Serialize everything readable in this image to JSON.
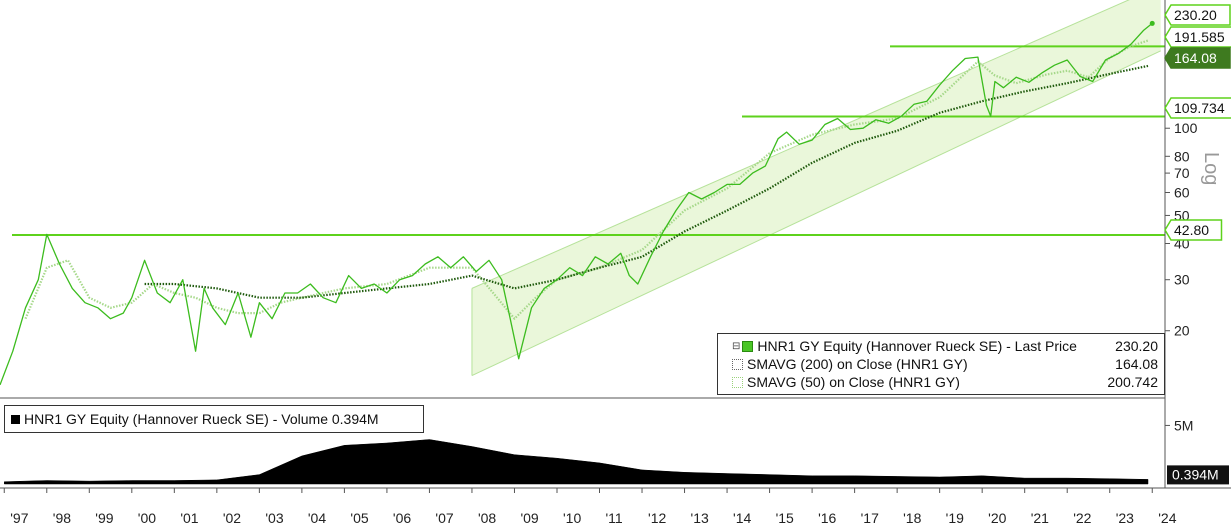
{
  "chart_data": [
    {
      "type": "line",
      "scale": "log",
      "yaxis_label": "Log",
      "ylim": [
        12,
        260
      ],
      "xlim": [
        1996.9,
        2024.3
      ],
      "y_ticks": [
        20,
        30,
        40,
        50,
        60,
        70,
        80,
        100
      ],
      "x_ticks": [
        "'97",
        "'98",
        "'99",
        "'00",
        "'01",
        "'02",
        "'03",
        "'04",
        "'05",
        "'06",
        "'07",
        "'08",
        "'09",
        "'10",
        "'11",
        "'12",
        "'13",
        "'14",
        "'15",
        "'16",
        "'17",
        "'18",
        "'19",
        "'20",
        "'21",
        "'22",
        "'23",
        "'24"
      ],
      "series": [
        {
          "name": "HNR1 GY Equity (Hannover Rueck SE) - Last Price",
          "color": "#3cbc1e",
          "x": [
            1996.9,
            1997.2,
            1997.5,
            1997.8,
            1998.0,
            1998.3,
            1998.6,
            1998.9,
            1999.2,
            1999.5,
            1999.8,
            2000.0,
            2000.3,
            2000.6,
            2000.9,
            2001.2,
            2001.5,
            2001.7,
            2001.9,
            2002.2,
            2002.5,
            2002.8,
            2003.0,
            2003.3,
            2003.6,
            2003.9,
            2004.2,
            2004.5,
            2004.8,
            2005.1,
            2005.4,
            2005.7,
            2006.0,
            2006.3,
            2006.6,
            2006.9,
            2007.2,
            2007.5,
            2007.8,
            2008.1,
            2008.4,
            2008.7,
            2008.9,
            2009.1,
            2009.4,
            2009.7,
            2010.0,
            2010.3,
            2010.6,
            2010.9,
            2011.2,
            2011.5,
            2011.7,
            2011.9,
            2012.2,
            2012.5,
            2012.8,
            2013.1,
            2013.4,
            2013.7,
            2014.0,
            2014.3,
            2014.6,
            2014.9,
            2015.2,
            2015.4,
            2015.7,
            2016.0,
            2016.3,
            2016.6,
            2016.9,
            2017.2,
            2017.5,
            2017.8,
            2018.1,
            2018.4,
            2018.7,
            2019.0,
            2019.3,
            2019.6,
            2019.9,
            2020.1,
            2020.2,
            2020.3,
            2020.5,
            2020.8,
            2021.1,
            2021.4,
            2021.7,
            2022.0,
            2022.3,
            2022.6,
            2022.9,
            2023.2,
            2023.5,
            2023.8,
            2024.0
          ],
          "values": [
            13,
            17,
            24,
            30,
            43,
            34,
            28,
            25,
            24,
            22,
            23,
            26,
            35,
            27,
            25,
            30,
            17,
            28,
            24,
            21,
            27,
            19,
            25,
            22,
            27,
            27,
            29,
            26,
            25,
            31,
            28,
            29,
            27,
            30,
            31,
            34,
            36,
            33,
            36,
            32,
            35,
            30,
            22,
            16,
            24,
            28,
            30,
            33,
            31,
            36,
            34,
            37,
            31,
            29,
            36,
            44,
            52,
            60,
            57,
            60,
            64,
            64,
            70,
            74,
            92,
            97,
            88,
            91,
            103,
            108,
            99,
            100,
            107,
            104,
            110,
            121,
            124,
            141,
            158,
            174,
            176,
            120,
            110,
            145,
            138,
            150,
            144,
            155,
            165,
            172,
            151,
            145,
            172,
            181,
            195,
            218,
            230
          ]
        },
        {
          "name": "SMAVG (200) on Close (HNR1 GY)",
          "color": "#1f5a0d",
          "x": [
            2000.3,
            2001.0,
            2002.0,
            2003.0,
            2004.0,
            2005.0,
            2006.0,
            2007.0,
            2008.0,
            2009.0,
            2010.0,
            2011.0,
            2012.0,
            2013.0,
            2014.0,
            2015.0,
            2016.0,
            2017.0,
            2018.0,
            2019.0,
            2020.0,
            2021.0,
            2022.0,
            2023.0,
            2023.9
          ],
          "values": [
            29,
            29,
            28,
            26,
            26,
            27,
            28,
            29,
            31,
            28,
            30,
            33,
            36,
            44,
            52,
            62,
            76,
            89,
            98,
            113,
            124,
            134,
            143,
            154,
            164.08
          ]
        },
        {
          "name": "SMAVG (50) on Close (HNR1 GY)",
          "color": "#a6d88a",
          "x": [
            1997.5,
            1998.0,
            1998.5,
            1999.0,
            1999.5,
            2000.0,
            2000.5,
            2001.0,
            2001.5,
            2002.0,
            2002.5,
            2003.0,
            2003.5,
            2004.0,
            2005.0,
            2006.0,
            2007.0,
            2008.0,
            2008.5,
            2009.0,
            2009.5,
            2010.0,
            2011.0,
            2012.0,
            2013.0,
            2014.0,
            2015.0,
            2016.0,
            2017.0,
            2018.0,
            2019.0,
            2019.9,
            2020.3,
            2020.8,
            2021.5,
            2022.0,
            2022.5,
            2023.0,
            2023.5,
            2023.9
          ],
          "values": [
            22,
            33,
            35,
            26,
            24,
            25,
            29,
            27,
            26,
            24,
            23,
            23,
            25,
            26,
            28,
            29,
            33,
            33,
            27,
            22,
            26,
            30,
            33,
            38,
            52,
            62,
            82,
            95,
            103,
            108,
            128,
            170,
            152,
            143,
            153,
            158,
            150,
            175,
            192,
            200.742
          ]
        },
        {
          "name": "HNR1 GY Equity (Hannover Rueck SE) - Volume",
          "color": "#000000",
          "x": [
            1997,
            1998,
            1999,
            2000,
            2001,
            2002,
            2003,
            2004,
            2005,
            2006,
            2007,
            2008,
            2009,
            2010,
            2011,
            2012,
            2013,
            2014,
            2015,
            2016,
            2017,
            2018,
            2019,
            2020,
            2021,
            2022,
            2023,
            2023.9
          ],
          "values": [
            0.2,
            0.3,
            0.25,
            0.3,
            0.3,
            0.35,
            0.8,
            2.4,
            3.3,
            3.5,
            3.8,
            3.2,
            2.5,
            2.2,
            1.8,
            1.2,
            1.0,
            0.9,
            0.8,
            0.7,
            0.7,
            0.65,
            0.6,
            0.7,
            0.5,
            0.5,
            0.45,
            0.394
          ],
          "unit": "M"
        }
      ],
      "levels": [
        {
          "label": "42.80",
          "value": 42.8
        },
        {
          "label": "109.734",
          "value": 109.734
        },
        {
          "label": "191.585",
          "value": 191.585
        }
      ],
      "channel": {
        "start_x": 2008.0,
        "end_x": 2024.2,
        "upper_start": 28,
        "upper_end": 310,
        "lower_start": 14,
        "lower_end": 185
      },
      "price_tags": [
        {
          "label": "230.20",
          "value": 230.2,
          "style": "green-outline"
        },
        {
          "label": "191.585",
          "value": 191.585,
          "style": "green-outline"
        },
        {
          "label": "164.08",
          "value": 164.08,
          "style": "dark-fill"
        },
        {
          "label": "109.734",
          "value": 109.734,
          "style": "green-outline"
        },
        {
          "label": "42.80",
          "value": 42.8,
          "style": "green-outline"
        }
      ],
      "volume_ticks": [
        {
          "label": "5M",
          "value": 5
        }
      ],
      "volume_tag": {
        "label": "0.394M",
        "value": 0.394
      }
    }
  ],
  "legend": {
    "rows": [
      {
        "label": "HNR1 GY Equity (Hannover Rueck SE) - Last Price",
        "value": "230.20"
      },
      {
        "label": "SMAVG (200)  on Close (HNR1 GY)",
        "value": "164.08"
      },
      {
        "label": "SMAVG (50)  on Close (HNR1 GY)",
        "value": "200.742"
      }
    ]
  },
  "volume_legend": {
    "label": "HNR1 GY Equity (Hannover Rueck SE) - Volume",
    "value": "0.394M"
  },
  "colors": {
    "price": "#3cbc1e",
    "level": "#5ed21c",
    "channel_fill": "#eaf7da",
    "channel_line": "#b6e29a"
  }
}
